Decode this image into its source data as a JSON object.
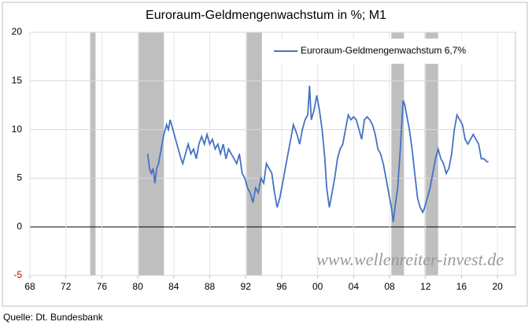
{
  "chart_data": {
    "type": "line",
    "title": "Euroraum-Geldmengenwachstum in %; M1",
    "source": "Quelle: Dt. Bundesbank",
    "watermark": "www.wellenreiter-invest.de",
    "xlim": [
      1968,
      2022
    ],
    "xticks": [
      {
        "value": 1968,
        "label": "68"
      },
      {
        "value": 1972,
        "label": "72"
      },
      {
        "value": 1976,
        "label": "76"
      },
      {
        "value": 1980,
        "label": "80"
      },
      {
        "value": 1984,
        "label": "84"
      },
      {
        "value": 1988,
        "label": "88"
      },
      {
        "value": 1992,
        "label": "92"
      },
      {
        "value": 1996,
        "label": "96"
      },
      {
        "value": 2000,
        "label": "00"
      },
      {
        "value": 2004,
        "label": "04"
      },
      {
        "value": 2008,
        "label": "08"
      },
      {
        "value": 2012,
        "label": "12"
      },
      {
        "value": 2016,
        "label": "16"
      },
      {
        "value": 2020,
        "label": "20"
      }
    ],
    "ylim": [
      -5,
      20
    ],
    "yticks": [
      -5,
      0,
      5,
      10,
      15,
      20
    ],
    "grid": true,
    "legend": "upper right",
    "shaded_periods": [
      [
        1974.7,
        1975.3
      ],
      [
        1980.1,
        1982.9
      ],
      [
        1992.1,
        1993.8
      ],
      [
        2008.2,
        2009.6
      ],
      [
        2011.9,
        2013.4
      ]
    ],
    "shade_color": "#bfbfbf",
    "x": [
      1981.1,
      1981.3,
      1981.5,
      1981.7,
      1981.9,
      1982.1,
      1982.3,
      1982.6,
      1982.9,
      1983.2,
      1983.4,
      1983.6,
      1983.9,
      1984.2,
      1984.5,
      1984.8,
      1985.0,
      1985.3,
      1985.6,
      1985.9,
      1986.2,
      1986.5,
      1986.8,
      1987.1,
      1987.4,
      1987.7,
      1988.0,
      1988.3,
      1988.6,
      1988.9,
      1989.2,
      1989.5,
      1989.8,
      1990.1,
      1990.4,
      1990.7,
      1991.0,
      1991.3,
      1991.6,
      1991.9,
      1992.2,
      1992.5,
      1992.8,
      1993.1,
      1993.4,
      1993.7,
      1994.0,
      1994.3,
      1994.6,
      1994.9,
      1995.2,
      1995.5,
      1995.8,
      1996.1,
      1996.4,
      1996.7,
      1997.0,
      1997.3,
      1997.5,
      1997.7,
      1998.0,
      1998.3,
      1998.6,
      1998.9,
      1999.1,
      1999.3,
      1999.6,
      1999.9,
      2000.2,
      2000.5,
      2000.8,
      2001.0,
      2001.3,
      2001.6,
      2001.9,
      2002.2,
      2002.5,
      2002.8,
      2003.1,
      2003.4,
      2003.7,
      2004.0,
      2004.3,
      2004.6,
      2004.9,
      2005.2,
      2005.5,
      2005.8,
      2006.1,
      2006.4,
      2006.7,
      2007.0,
      2007.3,
      2007.6,
      2007.9,
      2008.2,
      2008.4,
      2008.6,
      2008.9,
      2009.2,
      2009.5,
      2009.7,
      2009.9,
      2010.2,
      2010.5,
      2010.8,
      2011.1,
      2011.4,
      2011.7,
      2011.9,
      2012.2,
      2012.5,
      2012.8,
      2013.1,
      2013.4,
      2013.7,
      2014.0,
      2014.3,
      2014.6,
      2014.9,
      2015.2,
      2015.5,
      2015.8,
      2016.1,
      2016.4,
      2016.7,
      2017.0,
      2017.3,
      2017.6,
      2017.9,
      2018.2,
      2018.5,
      2018.8,
      2019.0
    ],
    "series": [
      {
        "name": "Euroraum-Geldmengenwachstum 6,7%",
        "color": "#4472c4",
        "values": [
          7.5,
          6,
          5.5,
          6,
          4.5,
          6,
          6.5,
          8,
          9.5,
          10.5,
          10,
          11,
          10,
          9,
          8,
          7,
          6.5,
          7.5,
          8.5,
          7.5,
          8,
          7,
          8.5,
          9.3,
          8.5,
          9.5,
          8.5,
          9,
          8,
          8.5,
          7.5,
          8.5,
          7,
          8,
          7.5,
          7,
          6.5,
          7.5,
          5.5,
          5,
          4,
          3.5,
          2.5,
          4,
          3.5,
          5,
          4.5,
          6.5,
          6,
          5.5,
          3.5,
          2,
          3,
          4.5,
          6,
          7.5,
          9,
          10.5,
          10,
          9.5,
          8.5,
          10,
          11,
          11.5,
          14.5,
          11,
          12,
          13.5,
          12,
          10,
          7,
          4,
          2,
          3.5,
          5,
          7,
          8,
          8.5,
          10,
          11.5,
          11,
          11.3,
          11,
          10,
          9,
          11,
          11.3,
          11,
          10.5,
          9.5,
          8,
          7.5,
          6.5,
          5,
          3.5,
          2,
          0.5,
          2,
          4,
          8,
          13,
          12.5,
          11.5,
          10,
          8,
          5.5,
          3,
          2,
          1.5,
          2,
          3,
          4,
          5.5,
          7,
          8,
          7,
          6.5,
          5.5,
          6,
          7.5,
          10,
          11.5,
          11,
          10.5,
          9,
          8.5,
          9,
          9.5,
          9,
          8.5,
          7,
          7,
          6.7,
          6.7
        ]
      }
    ]
  }
}
